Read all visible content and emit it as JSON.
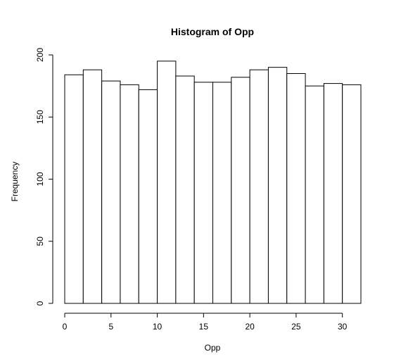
{
  "chart_data": {
    "type": "bar",
    "title": "Histogram of Opp",
    "xlabel": "Opp",
    "ylabel": "Frequency",
    "bin_edges": [
      0,
      2,
      4,
      6,
      8,
      10,
      12,
      14,
      16,
      18,
      20,
      22,
      24,
      26,
      28,
      30,
      32
    ],
    "values": [
      184,
      188,
      179,
      176,
      172,
      195,
      183,
      178,
      178,
      182,
      188,
      190,
      185,
      175,
      177,
      176
    ],
    "xlim": [
      0,
      32
    ],
    "ylim": [
      0,
      200
    ],
    "x_ticks": [
      0,
      5,
      10,
      15,
      20,
      25,
      30
    ],
    "y_ticks": [
      0,
      50,
      100,
      150,
      200
    ],
    "grid": false,
    "legend": "none"
  }
}
